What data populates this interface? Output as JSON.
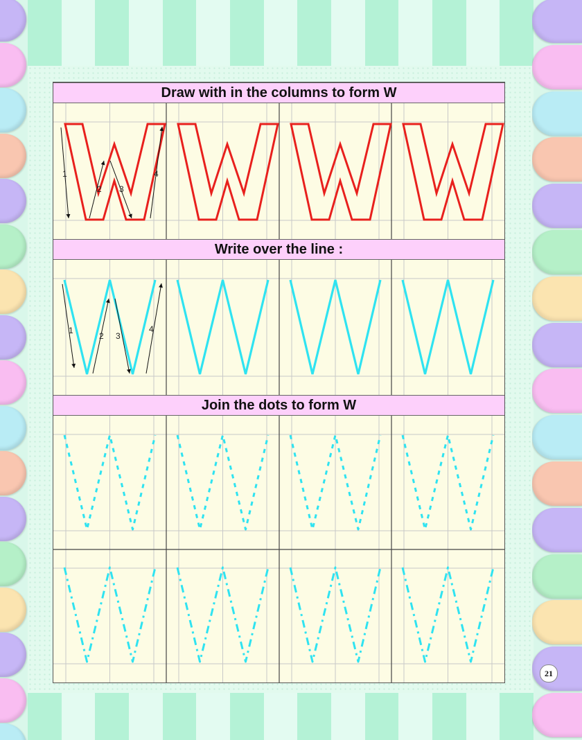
{
  "sections": [
    {
      "title": "Draw with in the columns to form W"
    },
    {
      "title": "Write over the line :"
    },
    {
      "title": "Join the dots to form W"
    }
  ],
  "stroke_numbers": [
    "1",
    "2",
    "3",
    "4"
  ],
  "page_number": "21",
  "colors": {
    "outline_letter": "#e8201d",
    "trace_letter": "#2fe3f1",
    "header_bg": "#fdd0fb",
    "cell_bg": "#fdfce4",
    "guide_line": "#c8c8c8"
  },
  "left_tab_colors": [
    "#c6b6f6",
    "#f9bdf1",
    "#b9ecf5",
    "#f9c6b0",
    "#c6b6f6",
    "#b5f0c8",
    "#fbe4b0",
    "#c6b6f6",
    "#f9bdf1",
    "#b9ecf5",
    "#f9c6b0",
    "#c6b6f6",
    "#b5f0c8",
    "#fbe4b0",
    "#c6b6f6",
    "#f9bdf1",
    "#b9ecf5"
  ],
  "right_tab_colors": [
    "#c6b6f6",
    "#f9bdf1",
    "#b9ecf5",
    "#f9c6b0",
    "#c6b6f6",
    "#b5f0c8",
    "#fbe4b0",
    "#c6b6f6",
    "#f9bdf1",
    "#b9ecf5",
    "#f9c6b0",
    "#c6b6f6",
    "#b5f0c8",
    "#fbe4b0",
    "#c6b6f6",
    "#f9bdf1"
  ]
}
